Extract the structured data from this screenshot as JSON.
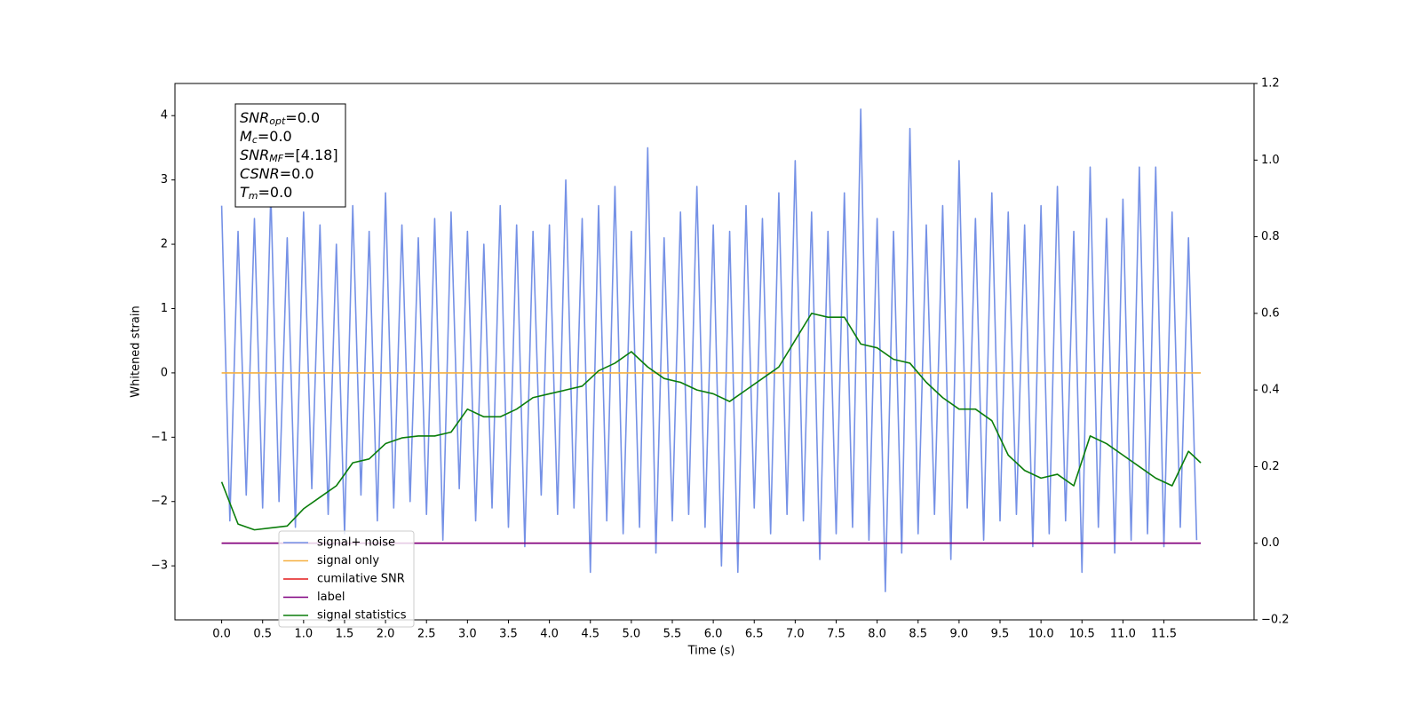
{
  "chart_data": {
    "type": "line",
    "xlabel": "Time (s)",
    "ylabel": "Whitened strain",
    "xlim": [
      -0.57,
      12.6
    ],
    "ylim": [
      -3.84,
      4.5
    ],
    "y2lim": [
      -0.2,
      1.2
    ],
    "xticks": [
      {
        "value": 0,
        "label": "0.0"
      },
      {
        "value": 0.5,
        "label": "0.5"
      },
      {
        "value": 1,
        "label": "1.0"
      },
      {
        "value": 1.5,
        "label": "1.5"
      },
      {
        "value": 2,
        "label": "2.0"
      },
      {
        "value": 2.5,
        "label": "2.5"
      },
      {
        "value": 3,
        "label": "3.0"
      },
      {
        "value": 3.5,
        "label": "3.5"
      },
      {
        "value": 4,
        "label": "4.0"
      },
      {
        "value": 4.5,
        "label": "4.5"
      },
      {
        "value": 5,
        "label": "5.0"
      },
      {
        "value": 5.5,
        "label": "5.5"
      },
      {
        "value": 6,
        "label": "6.0"
      },
      {
        "value": 6.5,
        "label": "6.5"
      },
      {
        "value": 7,
        "label": "7.0"
      },
      {
        "value": 7.5,
        "label": "7.5"
      },
      {
        "value": 8,
        "label": "8.0"
      },
      {
        "value": 8.5,
        "label": "8.5"
      },
      {
        "value": 9,
        "label": "9.0"
      },
      {
        "value": 9.5,
        "label": "9.5"
      },
      {
        "value": 10,
        "label": "10.0"
      },
      {
        "value": 10.5,
        "label": "10.5"
      },
      {
        "value": 11,
        "label": "11.0"
      },
      {
        "value": 11.5,
        "label": "11.5"
      }
    ],
    "yticks": [
      {
        "value": -3,
        "label": "−3"
      },
      {
        "value": -2,
        "label": "−2"
      },
      {
        "value": -1,
        "label": "−1"
      },
      0,
      1,
      2,
      3,
      4
    ],
    "y2ticks": [
      {
        "value": -0.2,
        "label": "−0.2"
      },
      {
        "value": 0,
        "label": "0.0"
      },
      0.2,
      0.4,
      0.6,
      0.8,
      {
        "value": 1,
        "label": "1.0"
      },
      1.2
    ],
    "annotation": [
      {
        "main": "SNR",
        "sub": "opt",
        "rest": "=0.0"
      },
      {
        "main": "M",
        "sub": "c",
        "rest": "=0.0"
      },
      {
        "main": "SNR",
        "sub": "MF",
        "rest": "=[4.18]"
      },
      {
        "main": "CSNR",
        "rest": "=0.0"
      },
      {
        "main": "T",
        "sub": "m",
        "rest": "=0.0"
      }
    ],
    "series": [
      {
        "name": "signal+ noise",
        "color": "#7591e6",
        "x": [
          0.0,
          0.1,
          0.2,
          0.3,
          0.4,
          0.5,
          0.6,
          0.7,
          0.8,
          0.9,
          1.0,
          1.1,
          1.2,
          1.3,
          1.4,
          1.5,
          1.6,
          1.7,
          1.8,
          1.9,
          2.0,
          2.1,
          2.2,
          2.3,
          2.4,
          2.5,
          2.6,
          2.7,
          2.8,
          2.9,
          3.0,
          3.1,
          3.2,
          3.3,
          3.4,
          3.5,
          3.6,
          3.7,
          3.8,
          3.9,
          4.0,
          4.1,
          4.2,
          4.3,
          4.4,
          4.5,
          4.6,
          4.7,
          4.8,
          4.9,
          5.0,
          5.1,
          5.2,
          5.3,
          5.4,
          5.5,
          5.6,
          5.7,
          5.8,
          5.9,
          6.0,
          6.1,
          6.2,
          6.3,
          6.4,
          6.5,
          6.6,
          6.7,
          6.8,
          6.9,
          7.0,
          7.1,
          7.2,
          7.3,
          7.4,
          7.5,
          7.6,
          7.7,
          7.8,
          7.9,
          8.0,
          8.1,
          8.2,
          8.3,
          8.4,
          8.5,
          8.6,
          8.7,
          8.8,
          8.9,
          9.0,
          9.1,
          9.2,
          9.3,
          9.4,
          9.5,
          9.6,
          9.7,
          9.8,
          9.9,
          10.0,
          10.1,
          10.2,
          10.3,
          10.4,
          10.5,
          10.6,
          10.7,
          10.8,
          10.9,
          11.0,
          11.1,
          11.2,
          11.3,
          11.4,
          11.5,
          11.6,
          11.7,
          11.8,
          11.9
        ],
        "values": [
          2.6,
          -2.3,
          2.2,
          -1.9,
          2.4,
          -2.1,
          2.8,
          -2.0,
          2.1,
          -2.4,
          2.5,
          -1.8,
          2.3,
          -2.2,
          2.0,
          -2.5,
          2.6,
          -1.9,
          2.2,
          -2.3,
          2.8,
          -2.1,
          2.3,
          -2.0,
          2.1,
          -2.2,
          2.4,
          -2.6,
          2.5,
          -1.8,
          2.2,
          -2.3,
          2.0,
          -2.1,
          2.6,
          -2.4,
          2.3,
          -2.7,
          2.2,
          -1.9,
          2.3,
          -2.2,
          3.0,
          -2.1,
          2.4,
          -3.1,
          2.6,
          -2.3,
          2.9,
          -2.5,
          2.2,
          -2.4,
          3.5,
          -2.8,
          2.1,
          -2.3,
          2.5,
          -2.2,
          2.9,
          -2.4,
          2.3,
          -3.0,
          2.2,
          -3.1,
          2.6,
          -2.1,
          2.4,
          -2.5,
          2.8,
          -2.2,
          3.3,
          -2.3,
          2.5,
          -2.9,
          2.2,
          -2.5,
          2.8,
          -2.4,
          4.1,
          -2.6,
          2.4,
          -3.4,
          2.2,
          -2.8,
          3.8,
          -2.5,
          2.3,
          -2.2,
          2.6,
          -2.9,
          3.3,
          -2.1,
          2.4,
          -2.6,
          2.8,
          -2.3,
          2.5,
          -2.2,
          2.3,
          -2.7,
          2.6,
          -2.5,
          2.9,
          -2.3,
          2.2,
          -3.1,
          3.2,
          -2.4,
          2.4,
          -2.8,
          2.7,
          -2.6,
          3.2,
          -2.5,
          3.2,
          -2.7,
          2.5,
          -2.4,
          2.1,
          -2.6
        ]
      },
      {
        "name": "signal only",
        "color": "#f5b041",
        "x": [
          0,
          11.95
        ],
        "values": [
          0,
          0
        ]
      },
      {
        "name": "cumilative SNR",
        "color": "#e41a1c",
        "axis": "y2",
        "x": [
          0,
          11.95
        ],
        "values": [
          0,
          0
        ]
      },
      {
        "name": "label",
        "color": "#800080",
        "axis": "y2",
        "x": [
          0,
          11.95
        ],
        "values": [
          0,
          0
        ]
      },
      {
        "name": "signal statistics",
        "color": "#0a7d0a",
        "axis": "y2",
        "x": [
          0.0,
          0.2,
          0.4,
          0.6,
          0.8,
          1.0,
          1.2,
          1.4,
          1.6,
          1.8,
          2.0,
          2.2,
          2.4,
          2.6,
          2.8,
          3.0,
          3.2,
          3.4,
          3.6,
          3.8,
          4.0,
          4.2,
          4.4,
          4.6,
          4.8,
          5.0,
          5.2,
          5.4,
          5.6,
          5.8,
          6.0,
          6.2,
          6.4,
          6.6,
          6.8,
          7.0,
          7.2,
          7.4,
          7.6,
          7.8,
          8.0,
          8.2,
          8.4,
          8.6,
          8.8,
          9.0,
          9.2,
          9.4,
          9.6,
          9.8,
          10.0,
          10.2,
          10.4,
          10.6,
          10.8,
          11.0,
          11.2,
          11.4,
          11.6,
          11.8,
          11.95
        ],
        "values": [
          0.16,
          0.05,
          0.035,
          0.04,
          0.045,
          0.09,
          0.12,
          0.15,
          0.21,
          0.22,
          0.26,
          0.275,
          0.28,
          0.28,
          0.29,
          0.35,
          0.33,
          0.33,
          0.35,
          0.38,
          0.39,
          0.4,
          0.41,
          0.45,
          0.47,
          0.5,
          0.46,
          0.43,
          0.42,
          0.4,
          0.39,
          0.37,
          0.4,
          0.43,
          0.46,
          0.53,
          0.6,
          0.59,
          0.59,
          0.52,
          0.51,
          0.48,
          0.47,
          0.42,
          0.38,
          0.35,
          0.35,
          0.32,
          0.23,
          0.19,
          0.17,
          0.18,
          0.15,
          0.28,
          0.26,
          0.23,
          0.2,
          0.17,
          0.15,
          0.24,
          0.21
        ]
      }
    ]
  }
}
